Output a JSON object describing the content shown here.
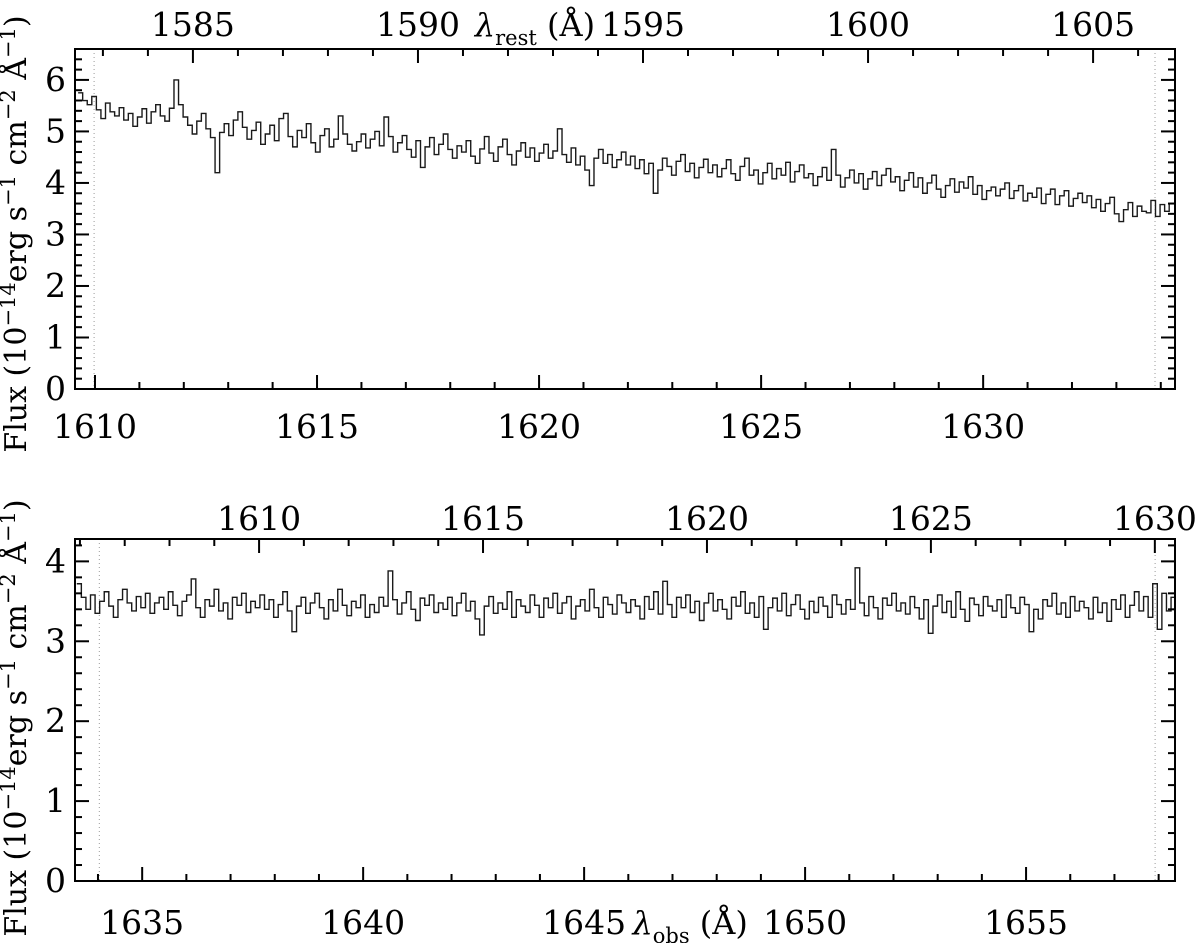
{
  "figure": {
    "background": "#ffffff",
    "line_color": "#000000",
    "dotted_line_color": "#9a9a9a",
    "description": "Two-panel UV flux spectrum, histogram style, observed wavelength on bottom axes and rest wavelength on top axes"
  },
  "chart_data": [
    {
      "type": "line",
      "style": "histogram-step",
      "panel": "top",
      "ylabel_parts": [
        {
          "t": "Flux (10"
        },
        {
          "t": "−14",
          "sup": true
        },
        {
          "t": "erg s"
        },
        {
          "t": "−1",
          "sup": true
        },
        {
          "t": " cm"
        },
        {
          "t": "−2",
          "sup": true
        },
        {
          "t": " Å"
        },
        {
          "t": "−1",
          "sup": true
        },
        {
          "t": ")"
        }
      ],
      "top_axis_title_parts": [
        {
          "t": "λ",
          "italic": true
        },
        {
          "t": "rest",
          "sub": true
        },
        {
          "t": " (Å)"
        }
      ],
      "top_axis_title_center_rest": 1592.6,
      "bottom_axis_title_parts": null,
      "x_obs_range": [
        1609.55,
        1634.32
      ],
      "x_rest_range": [
        1582.38,
        1606.82
      ],
      "ylim": [
        0,
        6.6
      ],
      "x_major_ticks_bottom": [
        1610,
        1615,
        1620,
        1625,
        1630
      ],
      "x_major_ticks_top": [
        1585,
        1590,
        1595,
        1600,
        1605
      ],
      "y_major_ticks": [
        0,
        1,
        2,
        3,
        4,
        5,
        6
      ],
      "x_minor_step": 1,
      "y_minor_step": 0.2,
      "grid": false,
      "legend": null,
      "dotted_lines_obs": [
        1609.98,
        1633.87
      ],
      "spectrum": {
        "lambda_start": 1609.62,
        "lambda_step": 0.1028,
        "flux": [
          5.75,
          5.6,
          5.52,
          5.68,
          5.42,
          5.25,
          5.55,
          5.38,
          5.3,
          5.46,
          5.22,
          5.35,
          5.1,
          5.28,
          5.44,
          5.16,
          5.38,
          5.52,
          5.3,
          5.2,
          5.45,
          6.0,
          5.52,
          5.28,
          5.12,
          4.95,
          5.2,
          5.35,
          5.05,
          4.88,
          4.2,
          4.98,
          5.15,
          4.92,
          5.22,
          5.38,
          5.08,
          4.85,
          5.02,
          5.18,
          4.75,
          4.95,
          5.12,
          4.82,
          5.25,
          5.35,
          4.9,
          4.7,
          5.02,
          4.88,
          5.15,
          4.78,
          4.6,
          4.92,
          5.05,
          4.7,
          4.85,
          5.3,
          4.95,
          4.75,
          4.62,
          4.8,
          4.95,
          4.68,
          4.85,
          5.0,
          4.72,
          5.28,
          4.9,
          4.6,
          4.78,
          4.92,
          4.65,
          4.5,
          4.82,
          4.3,
          4.7,
          4.88,
          4.55,
          4.75,
          4.95,
          4.65,
          4.48,
          4.72,
          4.6,
          4.82,
          4.52,
          4.38,
          4.66,
          4.9,
          4.58,
          4.42,
          4.7,
          4.85,
          4.55,
          4.35,
          4.62,
          4.78,
          4.5,
          4.68,
          4.42,
          4.58,
          4.75,
          4.48,
          4.62,
          5.05,
          4.55,
          4.4,
          4.68,
          4.35,
          4.52,
          4.25,
          3.95,
          4.48,
          4.65,
          4.38,
          4.55,
          4.3,
          4.45,
          4.6,
          4.35,
          4.52,
          4.28,
          4.45,
          4.18,
          4.38,
          3.8,
          4.25,
          4.48,
          4.32,
          4.15,
          4.42,
          4.55,
          4.22,
          4.38,
          4.1,
          4.3,
          4.46,
          4.2,
          4.35,
          4.12,
          4.28,
          4.45,
          4.18,
          4.05,
          4.32,
          4.48,
          4.15,
          4.25,
          3.98,
          4.2,
          4.38,
          4.08,
          4.28,
          4.15,
          4.4,
          4.02,
          4.22,
          4.35,
          4.1,
          4.18,
          3.95,
          4.12,
          4.3,
          4.05,
          4.65,
          4.15,
          3.92,
          4.1,
          4.25,
          4.0,
          4.18,
          3.88,
          4.08,
          4.22,
          3.95,
          4.15,
          4.28,
          4.02,
          4.12,
          3.85,
          4.05,
          4.2,
          3.92,
          4.1,
          3.8,
          4.0,
          4.15,
          3.88,
          3.72,
          3.95,
          4.08,
          3.82,
          4.02,
          3.9,
          4.12,
          3.78,
          3.95,
          3.68,
          3.85,
          3.92,
          3.75,
          3.88,
          4.0,
          3.7,
          3.85,
          3.95,
          3.65,
          3.8,
          3.72,
          3.9,
          3.6,
          3.78,
          3.88,
          3.58,
          3.75,
          3.85,
          3.55,
          3.7,
          3.8,
          3.62,
          3.75,
          3.52,
          3.68,
          3.45,
          3.6,
          3.72,
          3.4,
          3.25,
          3.48,
          3.62,
          3.35,
          3.55,
          3.45,
          3.42,
          3.66,
          3.35,
          3.58,
          3.45,
          3.6
        ]
      }
    },
    {
      "type": "line",
      "style": "histogram-step",
      "panel": "bottom",
      "ylabel_parts": [
        {
          "t": "Flux (10"
        },
        {
          "t": "−14",
          "sup": true
        },
        {
          "t": "erg s"
        },
        {
          "t": "−1",
          "sup": true
        },
        {
          "t": " cm"
        },
        {
          "t": "−2",
          "sup": true
        },
        {
          "t": " Å"
        },
        {
          "t": "−1",
          "sup": true
        },
        {
          "t": ")"
        }
      ],
      "top_axis_title_parts": null,
      "bottom_axis_title_parts": [
        {
          "t": "λ",
          "italic": true
        },
        {
          "t": "obs",
          "sub": true
        },
        {
          "t": " (Å)"
        }
      ],
      "bottom_axis_title_center_obs": 1647.4,
      "x_obs_range": [
        1633.48,
        1658.37
      ],
      "x_rest_range": [
        1605.89,
        1630.45
      ],
      "ylim": [
        0,
        4.28
      ],
      "x_major_ticks_bottom": [
        1635,
        1640,
        1645,
        1650,
        1655
      ],
      "x_major_ticks_top": [
        1610,
        1615,
        1620,
        1625,
        1630
      ],
      "y_major_ticks": [
        0,
        1,
        2,
        3,
        4
      ],
      "x_minor_step": 1,
      "y_minor_step": 0.2,
      "grid": false,
      "legend": null,
      "dotted_lines_obs": [
        1634.03,
        1657.92
      ],
      "spectrum": {
        "lambda_start": 1633.52,
        "lambda_step": 0.1036,
        "flux": [
          3.72,
          3.55,
          3.4,
          3.58,
          3.35,
          3.5,
          3.62,
          3.44,
          3.3,
          3.52,
          3.65,
          3.48,
          3.38,
          3.56,
          3.42,
          3.6,
          3.35,
          3.48,
          3.55,
          3.4,
          3.62,
          3.45,
          3.32,
          3.5,
          3.58,
          3.78,
          3.42,
          3.3,
          3.52,
          3.44,
          3.65,
          3.38,
          3.48,
          3.28,
          3.55,
          3.45,
          3.6,
          3.36,
          3.5,
          3.42,
          3.58,
          3.4,
          3.52,
          3.3,
          3.46,
          3.62,
          3.38,
          3.12,
          3.44,
          3.55,
          3.35,
          3.48,
          3.6,
          3.42,
          3.28,
          3.52,
          3.38,
          3.65,
          3.45,
          3.32,
          3.5,
          3.42,
          3.58,
          3.3,
          3.46,
          3.36,
          3.55,
          3.44,
          3.88,
          3.52,
          3.34,
          3.48,
          3.62,
          3.4,
          3.26,
          3.54,
          3.45,
          3.58,
          3.36,
          3.48,
          3.4,
          3.55,
          3.32,
          3.48,
          3.6,
          3.38,
          3.5,
          3.28,
          3.08,
          3.44,
          3.56,
          3.35,
          3.48,
          3.4,
          3.62,
          3.3,
          3.52,
          3.44,
          3.36,
          3.58,
          3.45,
          3.3,
          3.54,
          3.42,
          3.6,
          3.35,
          3.48,
          3.56,
          3.28,
          3.44,
          3.52,
          3.38,
          3.65,
          3.42,
          3.3,
          3.55,
          3.46,
          3.34,
          3.58,
          3.48,
          3.36,
          3.52,
          3.44,
          3.28,
          3.56,
          3.4,
          3.62,
          3.34,
          3.75,
          3.46,
          3.3,
          3.55,
          3.42,
          3.58,
          3.36,
          3.5,
          3.26,
          3.48,
          3.6,
          3.38,
          3.52,
          3.4,
          3.28,
          3.55,
          3.44,
          3.62,
          3.35,
          3.48,
          3.3,
          3.56,
          3.15,
          3.42,
          3.54,
          3.38,
          3.6,
          3.32,
          3.46,
          3.58,
          3.4,
          3.28,
          3.5,
          3.36,
          3.55,
          3.44,
          3.3,
          3.58,
          3.46,
          3.34,
          3.52,
          3.4,
          3.92,
          3.48,
          3.32,
          3.56,
          3.42,
          3.28,
          3.54,
          3.45,
          3.6,
          3.38,
          3.48,
          3.34,
          3.56,
          3.42,
          3.28,
          3.52,
          3.1,
          3.44,
          3.58,
          3.36,
          3.5,
          3.3,
          3.62,
          3.4,
          3.25,
          3.54,
          3.46,
          3.32,
          3.56,
          3.44,
          3.38,
          3.52,
          3.3,
          3.58,
          3.42,
          3.35,
          3.55,
          3.46,
          3.12,
          3.4,
          3.28,
          3.52,
          3.44,
          3.6,
          3.34,
          3.48,
          3.3,
          3.56,
          3.38,
          3.5,
          3.42,
          3.28,
          3.55,
          3.36,
          3.48,
          3.25,
          3.52,
          3.4,
          3.58,
          3.3,
          3.45,
          3.62,
          3.38,
          3.56,
          3.3,
          3.72,
          3.15,
          3.6,
          3.38,
          3.55
        ]
      }
    }
  ]
}
